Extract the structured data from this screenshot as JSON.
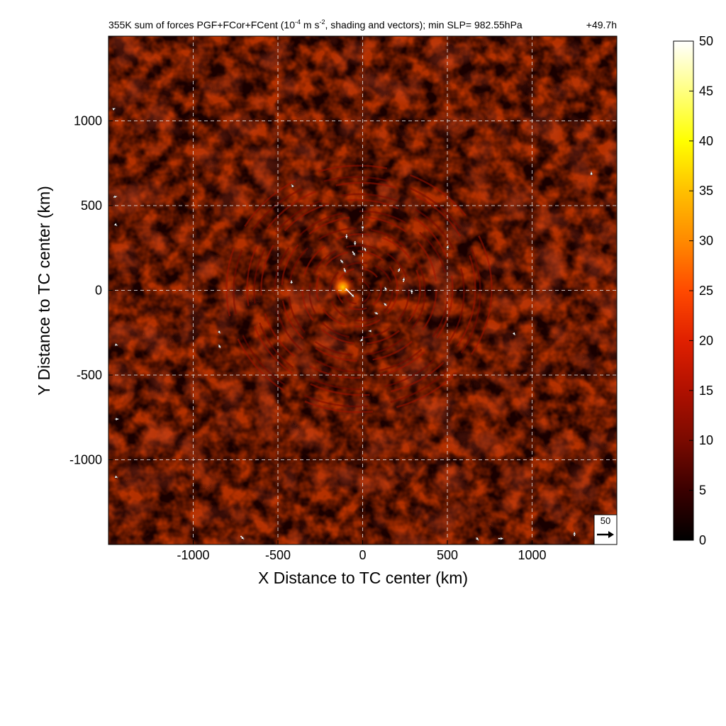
{
  "chart_data": {
    "type": "heatmap",
    "title": "355K sum of forces PGF+FCor+FCent (10",
    "title_sup1": "-4",
    "title_mid": " m s",
    "title_sup2": "-2",
    "title_end": ", shading and vectors); min SLP= 982.55hPa",
    "time_label": "+49.7h",
    "xlabel": "X Distance to TC center (km)",
    "ylabel": "Y Distance to TC center (km)",
    "xlim": [
      -1500,
      1500
    ],
    "ylim": [
      -1500,
      1500
    ],
    "xticks": [
      -1000,
      -500,
      0,
      500,
      1000
    ],
    "xtick_labels": [
      "-1000",
      "-500",
      "0",
      "500",
      "1000"
    ],
    "yticks": [
      -1000,
      -500,
      0,
      500,
      1000
    ],
    "ytick_labels": [
      "-1000",
      "-500",
      "0",
      "500",
      "1000"
    ],
    "grid": "dashed white at ticks",
    "colorbar": {
      "range": [
        0,
        50
      ],
      "ticks": [
        0,
        5,
        10,
        15,
        20,
        25,
        30,
        35,
        40,
        45,
        50
      ],
      "tick_labels": [
        "0",
        "5",
        "10",
        "15",
        "20",
        "25",
        "30",
        "35",
        "40",
        "45",
        "50"
      ],
      "colors": [
        "#000000",
        "#3a0000",
        "#7a0a00",
        "#b01000",
        "#e02000",
        "#ff4a00",
        "#ff8a00",
        "#ffc000",
        "#ffff00",
        "#ffff80",
        "#ffffff"
      ]
    },
    "reference_vector": {
      "label": "50",
      "magnitude": 50
    },
    "field_peak": {
      "x": -100,
      "y": 10,
      "value": 30
    },
    "vectors": [
      {
        "x": -100,
        "y": 10,
        "u": 1,
        "v": -1
      },
      {
        "x": -95,
        "y": 330,
        "u": 0,
        "v": -0.5
      },
      {
        "x": -45,
        "y": 290,
        "u": 0,
        "v": -0.5
      },
      {
        "x": 0,
        "y": 380,
        "u": 0,
        "v": -0.4
      },
      {
        "x": -60,
        "y": 230,
        "u": 0.3,
        "v": -0.5
      },
      {
        "x": 10,
        "y": 250,
        "u": 0.2,
        "v": -0.4
      },
      {
        "x": -130,
        "y": 180,
        "u": 0.3,
        "v": -0.4
      },
      {
        "x": -110,
        "y": 130,
        "u": 0.2,
        "v": -0.5
      },
      {
        "x": 210,
        "y": 110,
        "u": 0.2,
        "v": 0.4
      },
      {
        "x": 240,
        "y": 50,
        "u": 0.1,
        "v": 0.5
      },
      {
        "x": 290,
        "y": -20,
        "u": 0,
        "v": 0.5
      },
      {
        "x": 140,
        "y": 0,
        "u": -0.2,
        "v": 0.4
      },
      {
        "x": 140,
        "y": -90,
        "u": -0.3,
        "v": 0.3
      },
      {
        "x": 90,
        "y": -140,
        "u": -0.4,
        "v": 0.2
      },
      {
        "x": 50,
        "y": -240,
        "u": -0.3,
        "v": 0
      },
      {
        "x": 0,
        "y": -290,
        "u": -0.3,
        "v": -0.2
      },
      {
        "x": -410,
        "y": 610,
        "u": -0.2,
        "v": 0.3
      },
      {
        "x": 500,
        "y": 250,
        "u": 0.1,
        "v": 0.3
      },
      {
        "x": -420,
        "y": 40,
        "u": 0,
        "v": 0.4
      },
      {
        "x": -840,
        "y": -340,
        "u": -0.2,
        "v": 0.4
      },
      {
        "x": -850,
        "y": -240,
        "u": 0.2,
        "v": -0.3
      },
      {
        "x": 1350,
        "y": 680,
        "u": 0,
        "v": 0.4
      },
      {
        "x": 890,
        "y": -250,
        "u": 0.2,
        "v": -0.3
      },
      {
        "x": -1470,
        "y": 1070,
        "u": 0.2,
        "v": 0.1
      },
      {
        "x": -1470,
        "y": 550,
        "u": 0.4,
        "v": 0.1
      },
      {
        "x": -1460,
        "y": 390,
        "u": 0.2,
        "v": -0.2
      },
      {
        "x": -1460,
        "y": -320,
        "u": 0.3,
        "v": -0.1
      },
      {
        "x": -1460,
        "y": -760,
        "u": 0.4,
        "v": 0
      },
      {
        "x": -1460,
        "y": -1100,
        "u": 0.3,
        "v": -0.1
      },
      {
        "x": -720,
        "y": -1450,
        "u": 0.4,
        "v": -0.4
      },
      {
        "x": 670,
        "y": -1460,
        "u": 0.3,
        "v": -0.3
      },
      {
        "x": 800,
        "y": -1465,
        "u": 0.6,
        "v": 0
      },
      {
        "x": 1250,
        "y": -1450,
        "u": 0,
        "v": 0.5
      }
    ]
  }
}
